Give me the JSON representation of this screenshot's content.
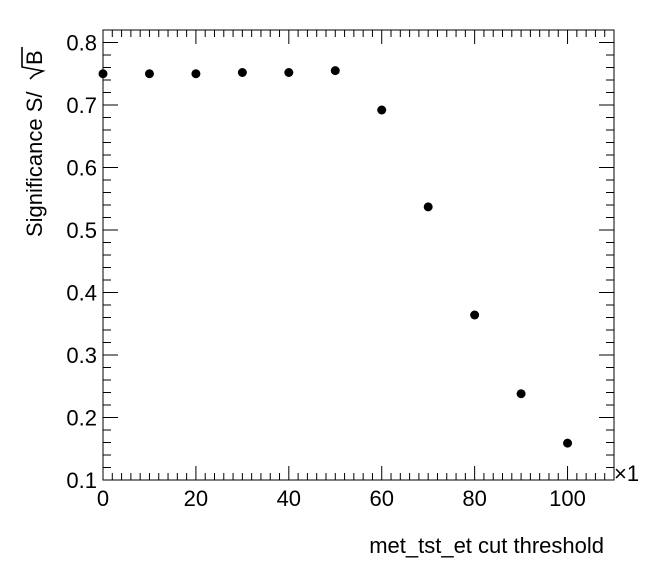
{
  "chart_data": {
    "type": "scatter",
    "title": "",
    "xlabel": "met_tst_et cut threshold",
    "ylabel": "Significance S/ √B",
    "ylabel_prefix": "Significance S/ ",
    "ylabel_radicand": "B",
    "x_multiplier_label": "×1",
    "xlim": [
      0,
      110
    ],
    "ylim": [
      0.1,
      0.82
    ],
    "x_ticks": [
      0,
      20,
      40,
      60,
      80,
      100
    ],
    "x_tick_labels": [
      "0",
      "20",
      "40",
      "60",
      "80",
      "100"
    ],
    "y_ticks": [
      0.1,
      0.2,
      0.3,
      0.4,
      0.5,
      0.6,
      0.7,
      0.8
    ],
    "y_tick_labels": [
      "0.1",
      "0.2",
      "0.3",
      "0.4",
      "0.5",
      "0.6",
      "0.7",
      "0.8"
    ],
    "grid": false,
    "marker_color": "#000000",
    "series": [
      {
        "x": [
          0,
          10,
          20,
          30,
          40,
          50,
          60,
          70,
          80,
          90,
          100
        ],
        "y": [
          0.75,
          0.75,
          0.75,
          0.752,
          0.752,
          0.755,
          0.692,
          0.537,
          0.364,
          0.238,
          0.159
        ]
      }
    ]
  }
}
